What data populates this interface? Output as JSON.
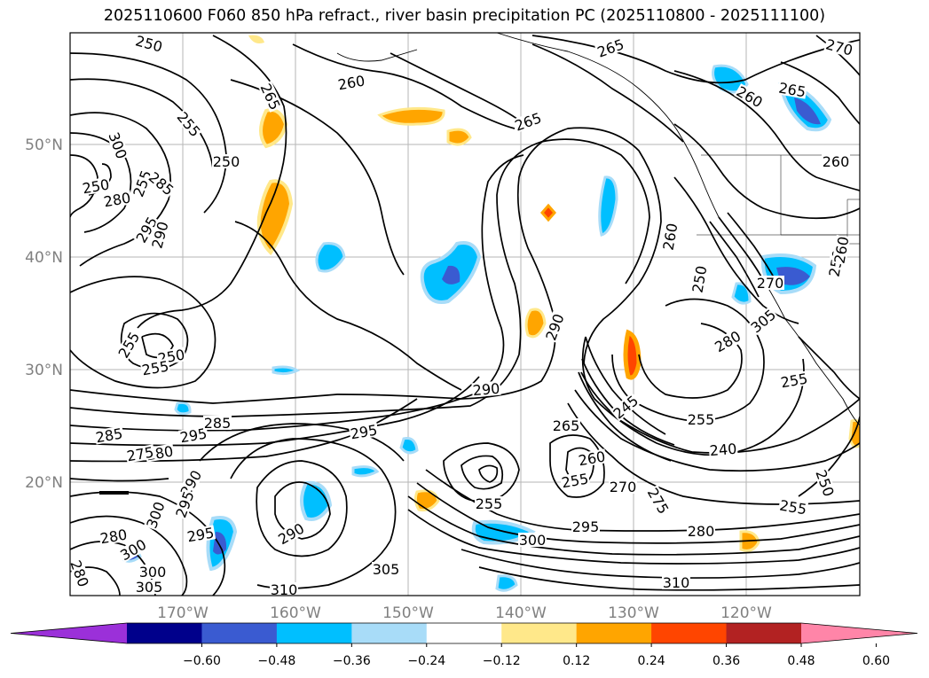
{
  "title": "2025110600 F060 850 hPa refract., river basin precipitation PC (2025110800 - 2025111100)",
  "latitude_labels": [
    "50°N",
    "40°N",
    "30°N",
    "20°N"
  ],
  "longitude_labels": [
    "170°W",
    "160°W",
    "150°W",
    "140°W",
    "130°W",
    "120°W"
  ],
  "contour_labels": [
    "250",
    "260",
    "265",
    "265",
    "255",
    "265",
    "260",
    "250",
    "255",
    "300",
    "250",
    "285",
    "280",
    "295",
    "290",
    "265",
    "260",
    "270",
    "290",
    "260",
    "250",
    "270",
    "250",
    "260",
    "255",
    "250",
    "255",
    "245",
    "290",
    "255",
    "285",
    "295",
    "285",
    "280",
    "275",
    "295",
    "290",
    "295",
    "265",
    "255",
    "260",
    "270",
    "275",
    "240",
    "250",
    "255",
    "300",
    "295",
    "280",
    "290",
    "280",
    "300",
    "300",
    "305",
    "305",
    "310",
    "310",
    "280",
    "300",
    "295",
    "255",
    "255",
    "255",
    "280",
    "305"
  ],
  "colorbar": {
    "ticks": [
      "−0.60",
      "−0.48",
      "−0.36",
      "−0.24",
      "−0.12",
      "0.12",
      "0.24",
      "0.36",
      "0.48",
      "0.60"
    ],
    "colors": [
      "#9b30d9",
      "#00008b",
      "#3a5bd1",
      "#00bfff",
      "#a8dcf8",
      "#ffffff",
      "#ffe88a",
      "#ffa500",
      "#ff4500",
      "#b22222",
      "#ff85a8"
    ]
  }
}
